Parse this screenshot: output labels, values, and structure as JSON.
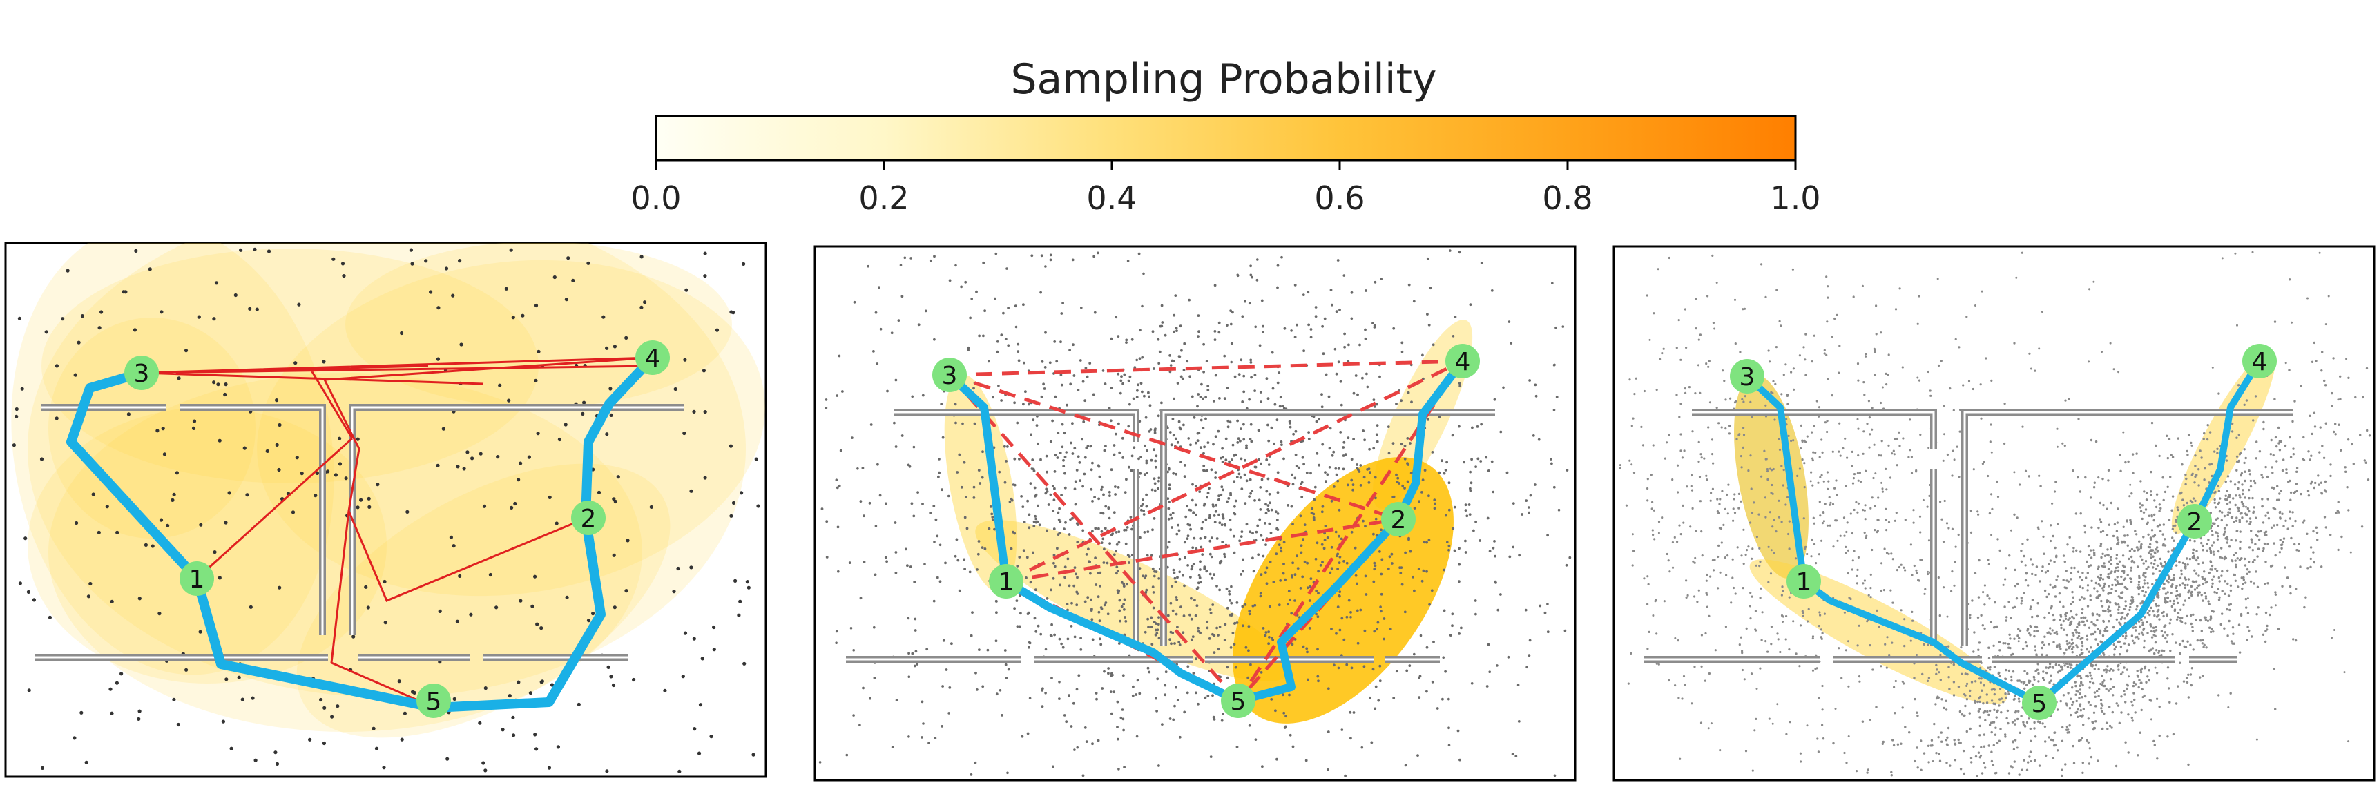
{
  "colorbar": {
    "title": "Sampling Probability",
    "ticks": [
      "0.0",
      "0.2",
      "0.4",
      "0.6",
      "0.8",
      "1.0"
    ],
    "range": [
      0.0,
      1.0
    ],
    "color_low": "#fffff5",
    "color_high": "#ff7f00"
  },
  "colors": {
    "path": "#1ab0e6",
    "path_edge": "#3a6fb0",
    "tree_edge": "#e02020",
    "dashed_edge": "#e84040",
    "wall": "#8c8c8c",
    "node": "#7fe37f",
    "sample_dark": "#333333",
    "sample_light": "#9a9a9a"
  },
  "node_labels": [
    "1",
    "2",
    "3",
    "4",
    "5"
  ],
  "panels": [
    {
      "name": "panel-left",
      "edge_style": "tree",
      "sample_style": "sparse-uniform"
    },
    {
      "name": "panel-middle",
      "edge_style": "dashed",
      "sample_style": "dense-gaussian"
    },
    {
      "name": "panel-right",
      "edge_style": "none",
      "sample_style": "focused-gaussian"
    }
  ]
}
